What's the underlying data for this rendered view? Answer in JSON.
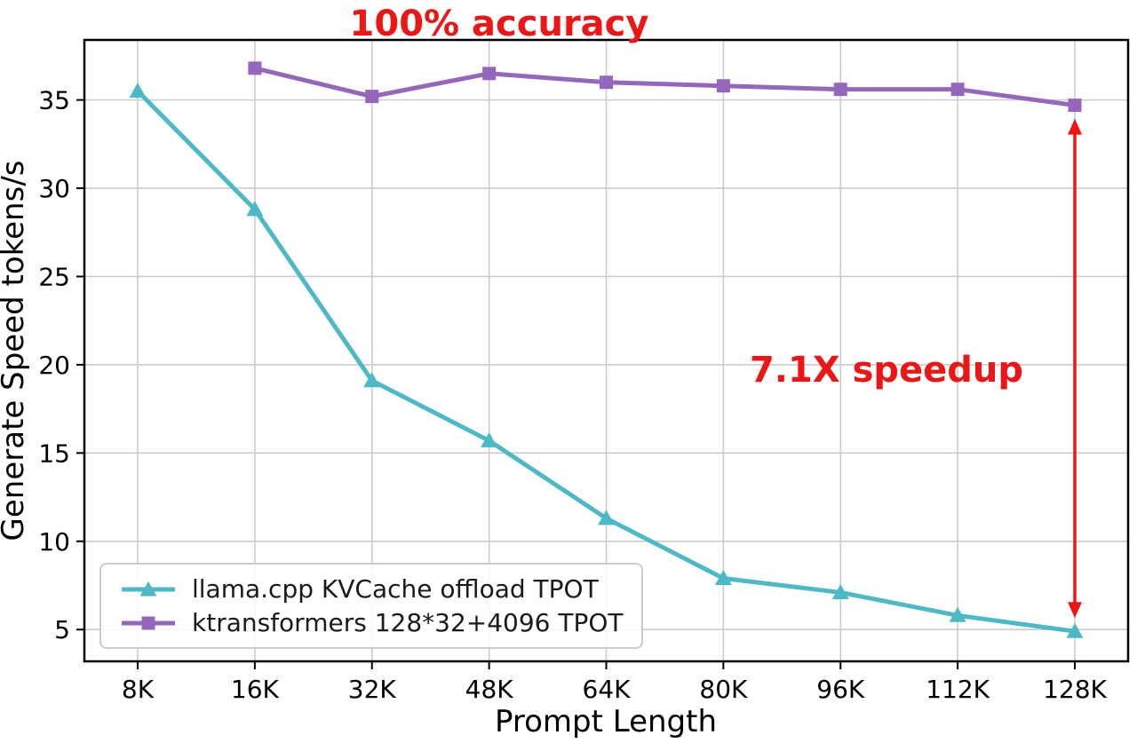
{
  "chart_data": {
    "type": "line",
    "title_annotation": "100% accuracy",
    "speedup_annotation": "7.1X speedup",
    "annotation_color": "#ee1515",
    "xlabel": "Prompt Length",
    "ylabel": "Generate Speed tokens/s",
    "categories": [
      "8K",
      "16K",
      "32K",
      "48K",
      "64K",
      "80K",
      "96K",
      "112K",
      "128K"
    ],
    "yticks": [
      5,
      10,
      15,
      20,
      25,
      30,
      35
    ],
    "ylim": [
      3.2,
      38.4
    ],
    "grid": true,
    "legend_position": "lower-left",
    "series": [
      {
        "name": "llama.cpp KVCache offload TPOT",
        "color": "#4bb9c6",
        "marker": "triangle",
        "values": [
          35.5,
          28.8,
          19.1,
          15.7,
          11.3,
          7.9,
          7.1,
          5.8,
          4.9
        ]
      },
      {
        "name": "ktransformers 128*32+4096 TPOT",
        "color": "#9467bd",
        "marker": "square",
        "values": [
          null,
          36.8,
          35.2,
          36.5,
          36.0,
          35.8,
          35.6,
          35.6,
          34.7
        ]
      }
    ],
    "arrow": {
      "category": "128K",
      "from": 34.7,
      "to": 4.9
    }
  }
}
